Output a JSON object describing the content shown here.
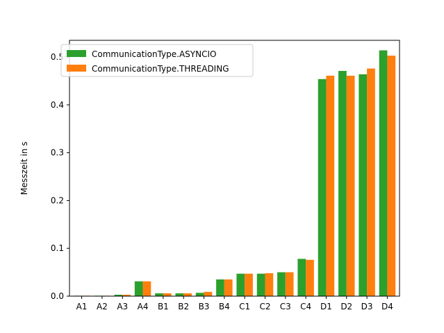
{
  "chart_data": {
    "type": "bar",
    "title": "",
    "xlabel": "",
    "ylabel": "Messzeit in s",
    "categories": [
      "A1",
      "A2",
      "A3",
      "A4",
      "B1",
      "B2",
      "B3",
      "B4",
      "C1",
      "C2",
      "C3",
      "C4",
      "D1",
      "D2",
      "D3",
      "D4"
    ],
    "series": [
      {
        "name": "CommunicationType.ASYNCIO",
        "color": "#2ca02c",
        "values": [
          0.001,
          0.001,
          0.003,
          0.031,
          0.006,
          0.006,
          0.007,
          0.035,
          0.047,
          0.047,
          0.05,
          0.078,
          0.454,
          0.471,
          0.464,
          0.514
        ]
      },
      {
        "name": "CommunicationType.THREADING",
        "color": "#ff7f0e",
        "values": [
          0.001,
          0.001,
          0.003,
          0.031,
          0.006,
          0.006,
          0.009,
          0.035,
          0.047,
          0.048,
          0.05,
          0.076,
          0.461,
          0.461,
          0.476,
          0.503
        ]
      }
    ],
    "ylim": [
      0,
      0.535
    ],
    "yticks": [
      0.0,
      0.1,
      0.2,
      0.3,
      0.4,
      0.5
    ],
    "ytick_labels": [
      "0.0",
      "0.1",
      "0.2",
      "0.3",
      "0.4",
      "0.5"
    ],
    "grid": false,
    "legend_position": "upper-left"
  }
}
